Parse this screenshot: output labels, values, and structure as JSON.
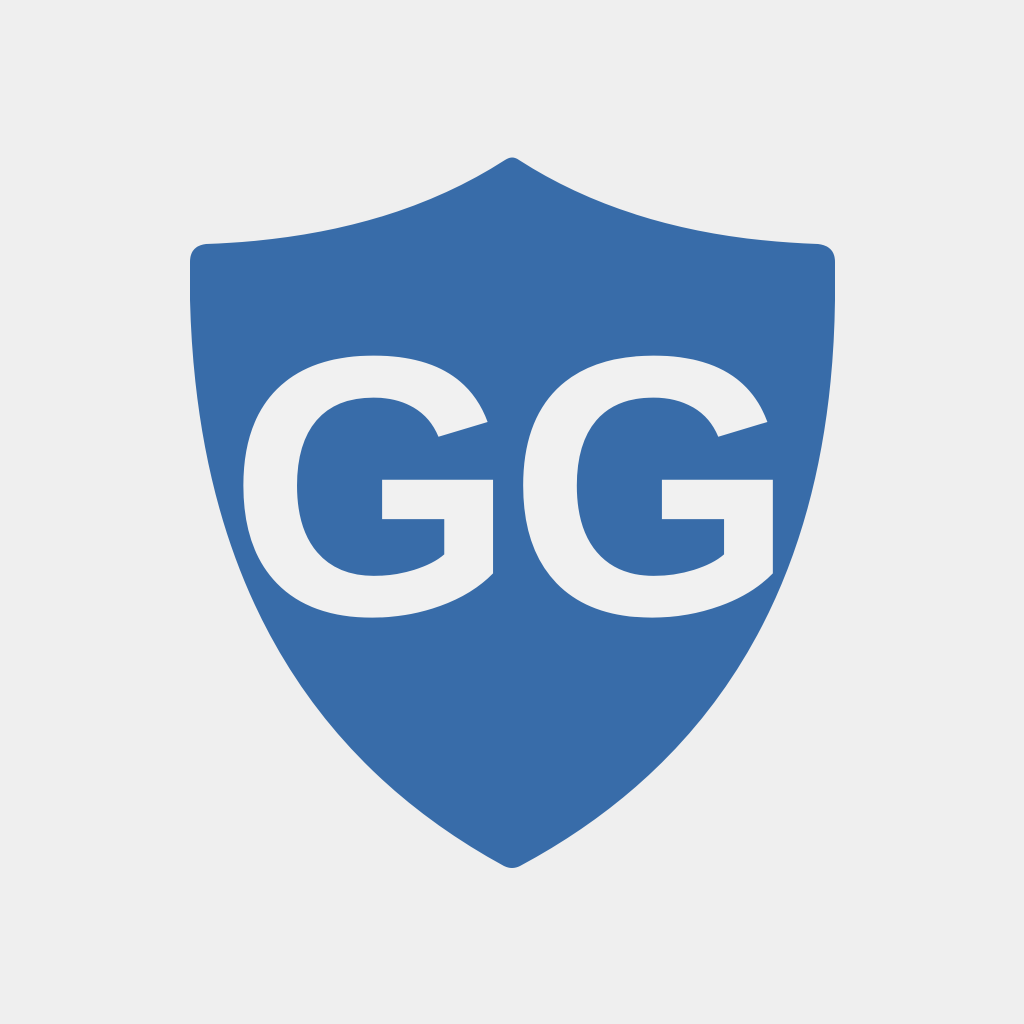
{
  "logo": {
    "monogram": "GG",
    "icon": "shield-icon"
  },
  "colors": {
    "background": "#efefef",
    "shield": "#386ca9",
    "text": "#f1f1f1"
  }
}
